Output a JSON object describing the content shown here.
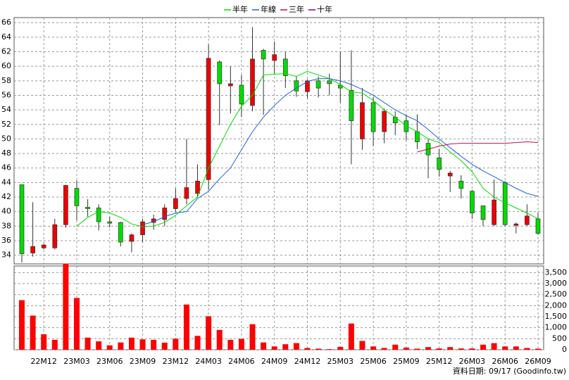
{
  "chart_data": {
    "type": "candlestick",
    "categories": [
      null,
      null,
      "22M12",
      null,
      null,
      "23M03",
      null,
      null,
      "23M06",
      null,
      null,
      "23M09",
      null,
      null,
      "23M12",
      null,
      null,
      "24M03",
      null,
      null,
      "24M06",
      null,
      null,
      "24M09",
      null,
      null,
      "24M12",
      null,
      null,
      "25M03",
      null,
      null,
      "25M06",
      null,
      null,
      "25M09",
      null,
      null,
      "25M12",
      null,
      null,
      "26M03",
      null,
      null,
      "26M06",
      null,
      null,
      "26M09"
    ],
    "open": [
      43.7,
      34.3,
      35.0,
      35.0,
      38.2,
      43.2,
      40.6,
      40.5,
      38.6,
      38.5,
      35.9,
      36.8,
      38.5,
      38.9,
      40.4,
      41.8,
      42.5,
      44.4,
      60.6,
      57.3,
      57.4,
      54.6,
      62.2,
      60.8,
      61.0,
      58.0,
      56.5,
      58.0,
      58.0,
      57.4,
      56.7,
      50.0,
      55.0,
      51.0,
      53.0,
      52.5,
      51.0,
      49.4,
      47.4,
      44.9,
      44.2,
      42.8,
      40.8,
      38.2,
      44.0,
      38.1,
      38.2,
      39.0
    ],
    "high": [
      43.7,
      41.3,
      35.6,
      39.0,
      43.7,
      44.3,
      41.7,
      41.0,
      39.3,
      38.6,
      37.0,
      39.0,
      39.6,
      41.0,
      43.2,
      50.0,
      46.5,
      63.0,
      60.8,
      60.0,
      58.8,
      65.4,
      62.4,
      63.4,
      62.0,
      58.6,
      58.2,
      58.6,
      59.0,
      62.0,
      62.2,
      57.0,
      55.8,
      54.2,
      53.8,
      53.4,
      53.4,
      50.0,
      48.6,
      45.6,
      45.0,
      43.0,
      40.8,
      44.4,
      44.2,
      38.5,
      41.0,
      39.8
    ],
    "low": [
      33.0,
      33.8,
      34.8,
      34.8,
      37.8,
      38.8,
      39.3,
      37.4,
      37.8,
      35.2,
      34.4,
      35.8,
      37.5,
      38.0,
      40.0,
      41.0,
      42.0,
      43.0,
      51.9,
      53.5,
      53.0,
      53.8,
      53.3,
      59.0,
      57.0,
      55.8,
      55.6,
      55.7,
      56.0,
      55.0,
      46.5,
      48.5,
      49.0,
      49.4,
      50.5,
      49.8,
      48.6,
      44.6,
      44.8,
      42.7,
      41.8,
      39.0,
      38.0,
      38.0,
      38.0,
      37.0,
      38.0,
      36.8
    ],
    "close": [
      34.2,
      35.2,
      35.4,
      38.2,
      43.6,
      40.8,
      40.4,
      38.6,
      38.4,
      35.8,
      36.8,
      38.6,
      39.0,
      40.5,
      41.8,
      43.3,
      44.2,
      61.1,
      57.6,
      57.6,
      54.8,
      61.0,
      61.0,
      61.6,
      58.7,
      56.6,
      58.0,
      57.0,
      57.6,
      57.0,
      52.5,
      55.0,
      51.0,
      53.8,
      52.2,
      51.0,
      49.6,
      47.8,
      45.8,
      45.3,
      43.2,
      39.8,
      38.9,
      41.6,
      38.2,
      38.3,
      39.4,
      37.0
    ],
    "up_color": "#ee0000",
    "down_color": "#00dd00",
    "ylim": [
      32.8,
      66.7
    ],
    "yticks": [
      34,
      36,
      38,
      40,
      42,
      44,
      46,
      48,
      50,
      52,
      54,
      56,
      58,
      60,
      62,
      64,
      66
    ],
    "grid": true,
    "lines": [
      {
        "name": "半年",
        "color": "#00dd00",
        "values": [
          null,
          null,
          null,
          null,
          null,
          38.0,
          39.2,
          40.0,
          39.8,
          39.2,
          38.3,
          37.9,
          38.0,
          38.5,
          39.5,
          40.8,
          42.0,
          46.0,
          49.0,
          52.0,
          54.5,
          56.0,
          58.8,
          58.9,
          59.0,
          58.6,
          59.3,
          58.8,
          58.3,
          57.5,
          56.5,
          56.3,
          55.3,
          54.0,
          53.0,
          51.8,
          51.0,
          50.0,
          49.5,
          48.2,
          47.0,
          45.5,
          43.2,
          42.0,
          41.2,
          40.5,
          39.8,
          39.0
        ]
      },
      {
        "name": "年線",
        "color": "#2060e0",
        "values": [
          null,
          null,
          null,
          null,
          null,
          null,
          null,
          null,
          null,
          null,
          null,
          38.2,
          38.6,
          39.3,
          39.8,
          40.0,
          41.8,
          42.8,
          44.5,
          46.0,
          48.5,
          51.0,
          53.0,
          54.6,
          56.0,
          57.0,
          57.9,
          58.3,
          58.3,
          58.0,
          57.5,
          56.8,
          56.0,
          55.0,
          54.0,
          53.2,
          52.5,
          51.3,
          50.0,
          48.8,
          47.6,
          46.5,
          45.6,
          44.8,
          44.0,
          43.2,
          42.5,
          42.1
        ]
      },
      {
        "name": "三年",
        "color": "#c0104a",
        "values": [
          null,
          null,
          null,
          null,
          null,
          null,
          null,
          null,
          null,
          null,
          null,
          null,
          null,
          null,
          null,
          null,
          null,
          null,
          null,
          null,
          null,
          null,
          null,
          null,
          null,
          null,
          null,
          null,
          null,
          null,
          null,
          null,
          null,
          null,
          null,
          null,
          48.2,
          48.6,
          49.0,
          49.3,
          49.4,
          49.4,
          49.4,
          49.4,
          49.4,
          49.5,
          49.6,
          49.5
        ]
      },
      {
        "name": "十年",
        "color": "#800080",
        "values": [
          null,
          null,
          null,
          null,
          null,
          null,
          null,
          null,
          null,
          null,
          null,
          null,
          null,
          null,
          null,
          null,
          null,
          null,
          null,
          null,
          null,
          null,
          null,
          null,
          null,
          null,
          null,
          null,
          null,
          null,
          null,
          null,
          null,
          null,
          null,
          null,
          null,
          null,
          null,
          null,
          null,
          null,
          null,
          null,
          null,
          null,
          null,
          null
        ]
      }
    ],
    "volume": {
      "color": "#ff0000",
      "values": [
        2250,
        1550,
        700,
        450,
        3900,
        2350,
        550,
        380,
        200,
        330,
        550,
        470,
        450,
        320,
        500,
        2050,
        630,
        1520,
        900,
        450,
        490,
        1160,
        330,
        150,
        250,
        300,
        80,
        50,
        30,
        130,
        1190,
        400,
        150,
        80,
        230,
        100,
        50,
        120,
        60,
        120,
        60,
        60,
        230,
        300,
        150,
        150,
        80,
        50
      ],
      "ylim": [
        0,
        3800
      ],
      "yticks": [
        0,
        500,
        {
          "value": 1000,
          "label": "1,000"
        },
        {
          "value": 1500,
          "label": "1,500"
        },
        {
          "value": 2000,
          "label": "2,000"
        },
        {
          "value": 2500,
          "label": "2,500"
        },
        {
          "value": 3000,
          "label": "3,000"
        },
        {
          "value": 3500,
          "label": "3,500"
        }
      ]
    },
    "footer": "資料日期: 09/17  (Goodinfo.tw)"
  }
}
